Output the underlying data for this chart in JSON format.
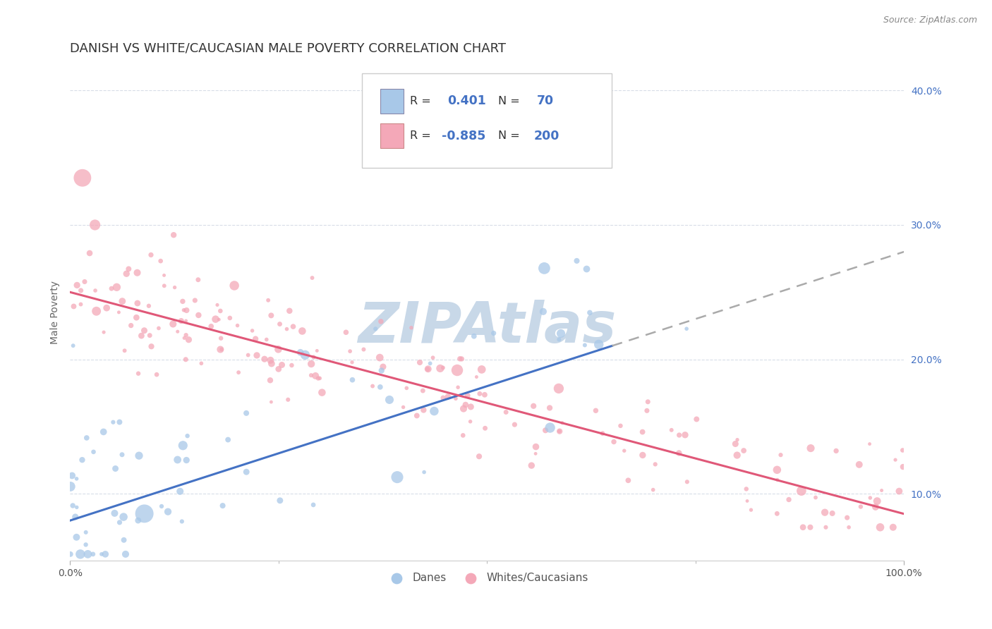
{
  "title": "DANISH VS WHITE/CAUCASIAN MALE POVERTY CORRELATION CHART",
  "source_text": "Source: ZipAtlas.com",
  "ylabel": "Male Poverty",
  "xlim": [
    0,
    100
  ],
  "ylim": [
    5,
    42
  ],
  "yticks": [
    10,
    20,
    30,
    40
  ],
  "xtick_positions": [
    0,
    100
  ],
  "xtick_labels": [
    "0.0%",
    "100.0%"
  ],
  "blue_R": 0.401,
  "blue_N": 70,
  "pink_R": -0.885,
  "pink_N": 200,
  "blue_color": "#a8c8e8",
  "pink_color": "#f4a8b8",
  "blue_line_color": "#4472c4",
  "pink_line_color": "#e05878",
  "dashed_line_color": "#aaaaaa",
  "grid_color": "#d8dde8",
  "background_color": "#ffffff",
  "watermark_text": "ZIPAtlas",
  "watermark_color": "#c8d8e8",
  "title_fontsize": 13,
  "axis_label_fontsize": 10,
  "tick_fontsize": 10,
  "legend_fontsize": 12,
  "blue_line_start_x": 0,
  "blue_line_end_solid_x": 65,
  "blue_line_end_x": 100,
  "blue_line_start_y": 8,
  "blue_line_end_y": 28,
  "pink_line_start_x": 0,
  "pink_line_end_x": 100,
  "pink_line_start_y": 25,
  "pink_line_end_y": 8.5
}
